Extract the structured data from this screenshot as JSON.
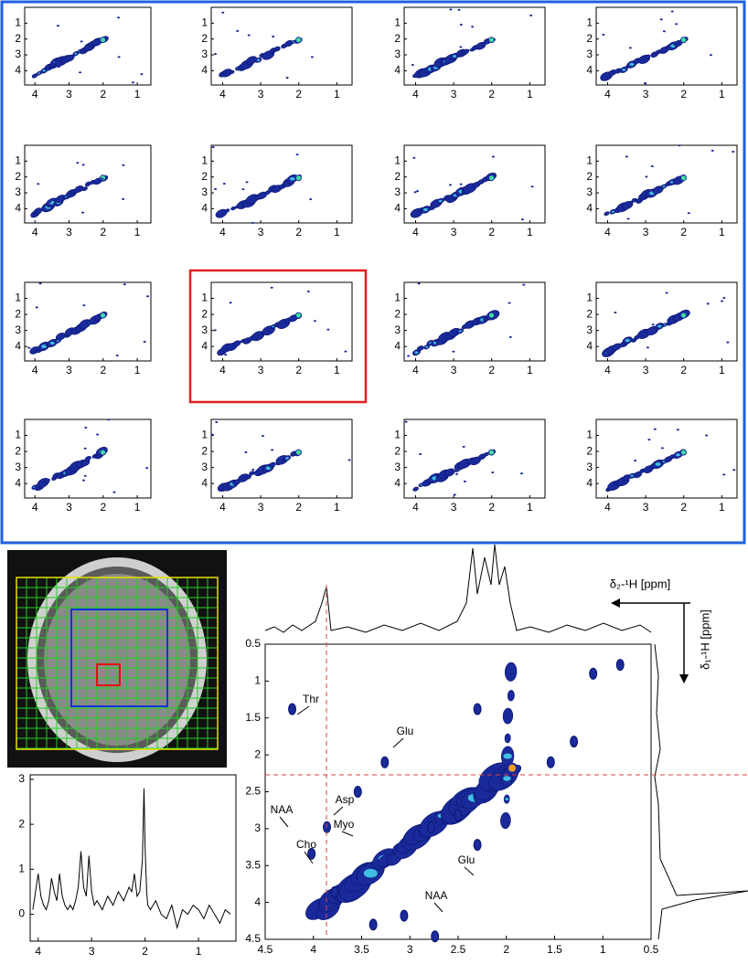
{
  "grid_panels": {
    "xlim": [
      4.3,
      0.6
    ],
    "ylim": [
      0,
      4.9
    ],
    "xticks": [
      4,
      3,
      2,
      1
    ],
    "yticks": [
      1,
      2,
      3,
      4
    ]
  },
  "spectrum_1d": {
    "type": "line",
    "color": "#000000",
    "xlim": [
      4.15,
      0.3
    ],
    "ylim": [
      -0.6,
      3.1
    ],
    "xticks": [
      4,
      3,
      2,
      1
    ],
    "yticks": [
      0,
      1,
      2,
      3
    ],
    "x": [
      4.1,
      4.05,
      4.0,
      3.95,
      3.9,
      3.85,
      3.8,
      3.75,
      3.7,
      3.65,
      3.6,
      3.55,
      3.5,
      3.45,
      3.4,
      3.35,
      3.3,
      3.25,
      3.2,
      3.15,
      3.1,
      3.05,
      3.0,
      2.95,
      2.9,
      2.8,
      2.7,
      2.6,
      2.5,
      2.4,
      2.3,
      2.25,
      2.2,
      2.15,
      2.1,
      2.05,
      2.02,
      2.0,
      1.97,
      1.95,
      1.9,
      1.8,
      1.7,
      1.6,
      1.5,
      1.4,
      1.3,
      1.2,
      1.1,
      1.0,
      0.9,
      0.8,
      0.7,
      0.6,
      0.5,
      0.4
    ],
    "values": [
      0.1,
      0.5,
      0.9,
      0.4,
      0.2,
      0.1,
      0.3,
      0.8,
      0.5,
      0.3,
      0.9,
      0.4,
      0.2,
      0.1,
      0.2,
      0.1,
      0.3,
      0.6,
      1.4,
      0.6,
      0.4,
      1.3,
      0.5,
      0.2,
      0.3,
      0.1,
      0.4,
      0.2,
      0.5,
      0.3,
      0.6,
      0.5,
      0.9,
      0.4,
      0.5,
      1.2,
      2.8,
      1.5,
      0.5,
      0.2,
      0.1,
      0.3,
      0,
      -0.1,
      0.2,
      -0.3,
      0.1,
      0,
      0.2,
      0.1,
      -0.1,
      0.2,
      0,
      -0.2,
      0.1,
      0
    ]
  },
  "spectrum_2d": {
    "xlim": [
      4.5,
      0.5
    ],
    "ylim": [
      0.5,
      4.5
    ],
    "xticks": [
      4.5,
      4,
      3.5,
      3,
      2.5,
      2,
      1.5,
      1,
      0.5
    ],
    "yticks": [
      0.5,
      1,
      1.5,
      2,
      2.5,
      3,
      3.5,
      4,
      4.5
    ],
    "x_axis_label": "δ₂-¹H [ppm]",
    "y_axis_label": "δ₁-¹H [ppm]",
    "annotations": [
      "Thr",
      "Glu",
      "NAA",
      "Asp",
      "Myo",
      "Cho",
      "Glu",
      "NAA"
    ]
  }
}
